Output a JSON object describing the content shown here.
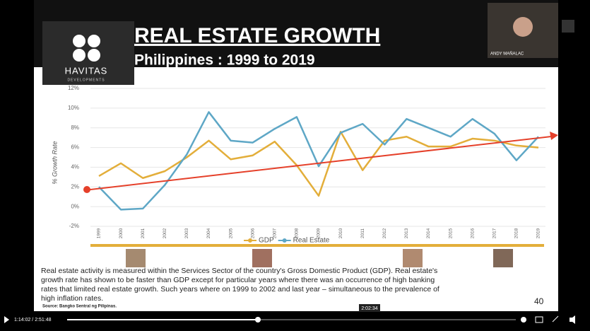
{
  "chart_data": {
    "type": "line",
    "y_label": "% Growth Rate",
    "categories": [
      "1999",
      "2000",
      "2001",
      "2002",
      "2003",
      "2004",
      "2005",
      "2006",
      "2007",
      "2008",
      "2009",
      "2010",
      "2011",
      "2012",
      "2013",
      "2014",
      "2015",
      "2016",
      "2017",
      "2018",
      "2019"
    ],
    "series": [
      {
        "name": "GDP",
        "color": "#e3ae3a",
        "values": [
          3.1,
          4.4,
          2.9,
          3.6,
          5.0,
          6.7,
          4.8,
          5.2,
          6.6,
          4.2,
          1.1,
          7.6,
          3.7,
          6.7,
          7.1,
          6.1,
          6.1,
          6.9,
          6.7,
          6.2,
          6.0
        ]
      },
      {
        "name": "Real Estate",
        "color": "#5ea7c6",
        "values": [
          2.0,
          -0.3,
          -0.2,
          2.2,
          5.3,
          9.6,
          6.7,
          6.5,
          7.9,
          9.1,
          4.1,
          7.5,
          8.4,
          6.3,
          8.9,
          8.0,
          7.1,
          8.9,
          7.4,
          4.7,
          7.1
        ]
      }
    ],
    "ylim": [
      -2,
      12
    ],
    "yticks": [
      {
        "value": -2,
        "label": "-2%"
      },
      {
        "value": 0,
        "label": "0%"
      },
      {
        "value": 2,
        "label": "2%"
      },
      {
        "value": 4,
        "label": "4%"
      },
      {
        "value": 6,
        "label": "6%"
      },
      {
        "value": 8,
        "label": "8%"
      },
      {
        "value": 10,
        "label": "10%"
      },
      {
        "value": 12,
        "label": "12%"
      }
    ],
    "grid": true
  },
  "slide": {
    "title": "REAL ESTATE GROWTH",
    "subtitle": "Philippines : 1999 to 2019",
    "logo": "HAVITAS",
    "logo_sub": "DEVELOPMENTS",
    "body": [
      "Real estate activity is measured within the Services Sector of the country's Gross Domestic Product (GDP). Real estate's",
      "growth rate has shown to be faster than GDP except for particular years where there was an occurrence of high banking",
      "rates that limited real estate growth. Such years where on 1999 to 2002 and last year – simultaneous to the prevalence of",
      "high inflation rates."
    ],
    "source": "Source: Bangko Sentral ng Pilipinas.",
    "page": "40"
  },
  "webcam": {
    "name": "ANDY MAÑALAC"
  },
  "player": {
    "time": "1:14:02 / 2:51:48",
    "hover_time": "2:02:34"
  }
}
